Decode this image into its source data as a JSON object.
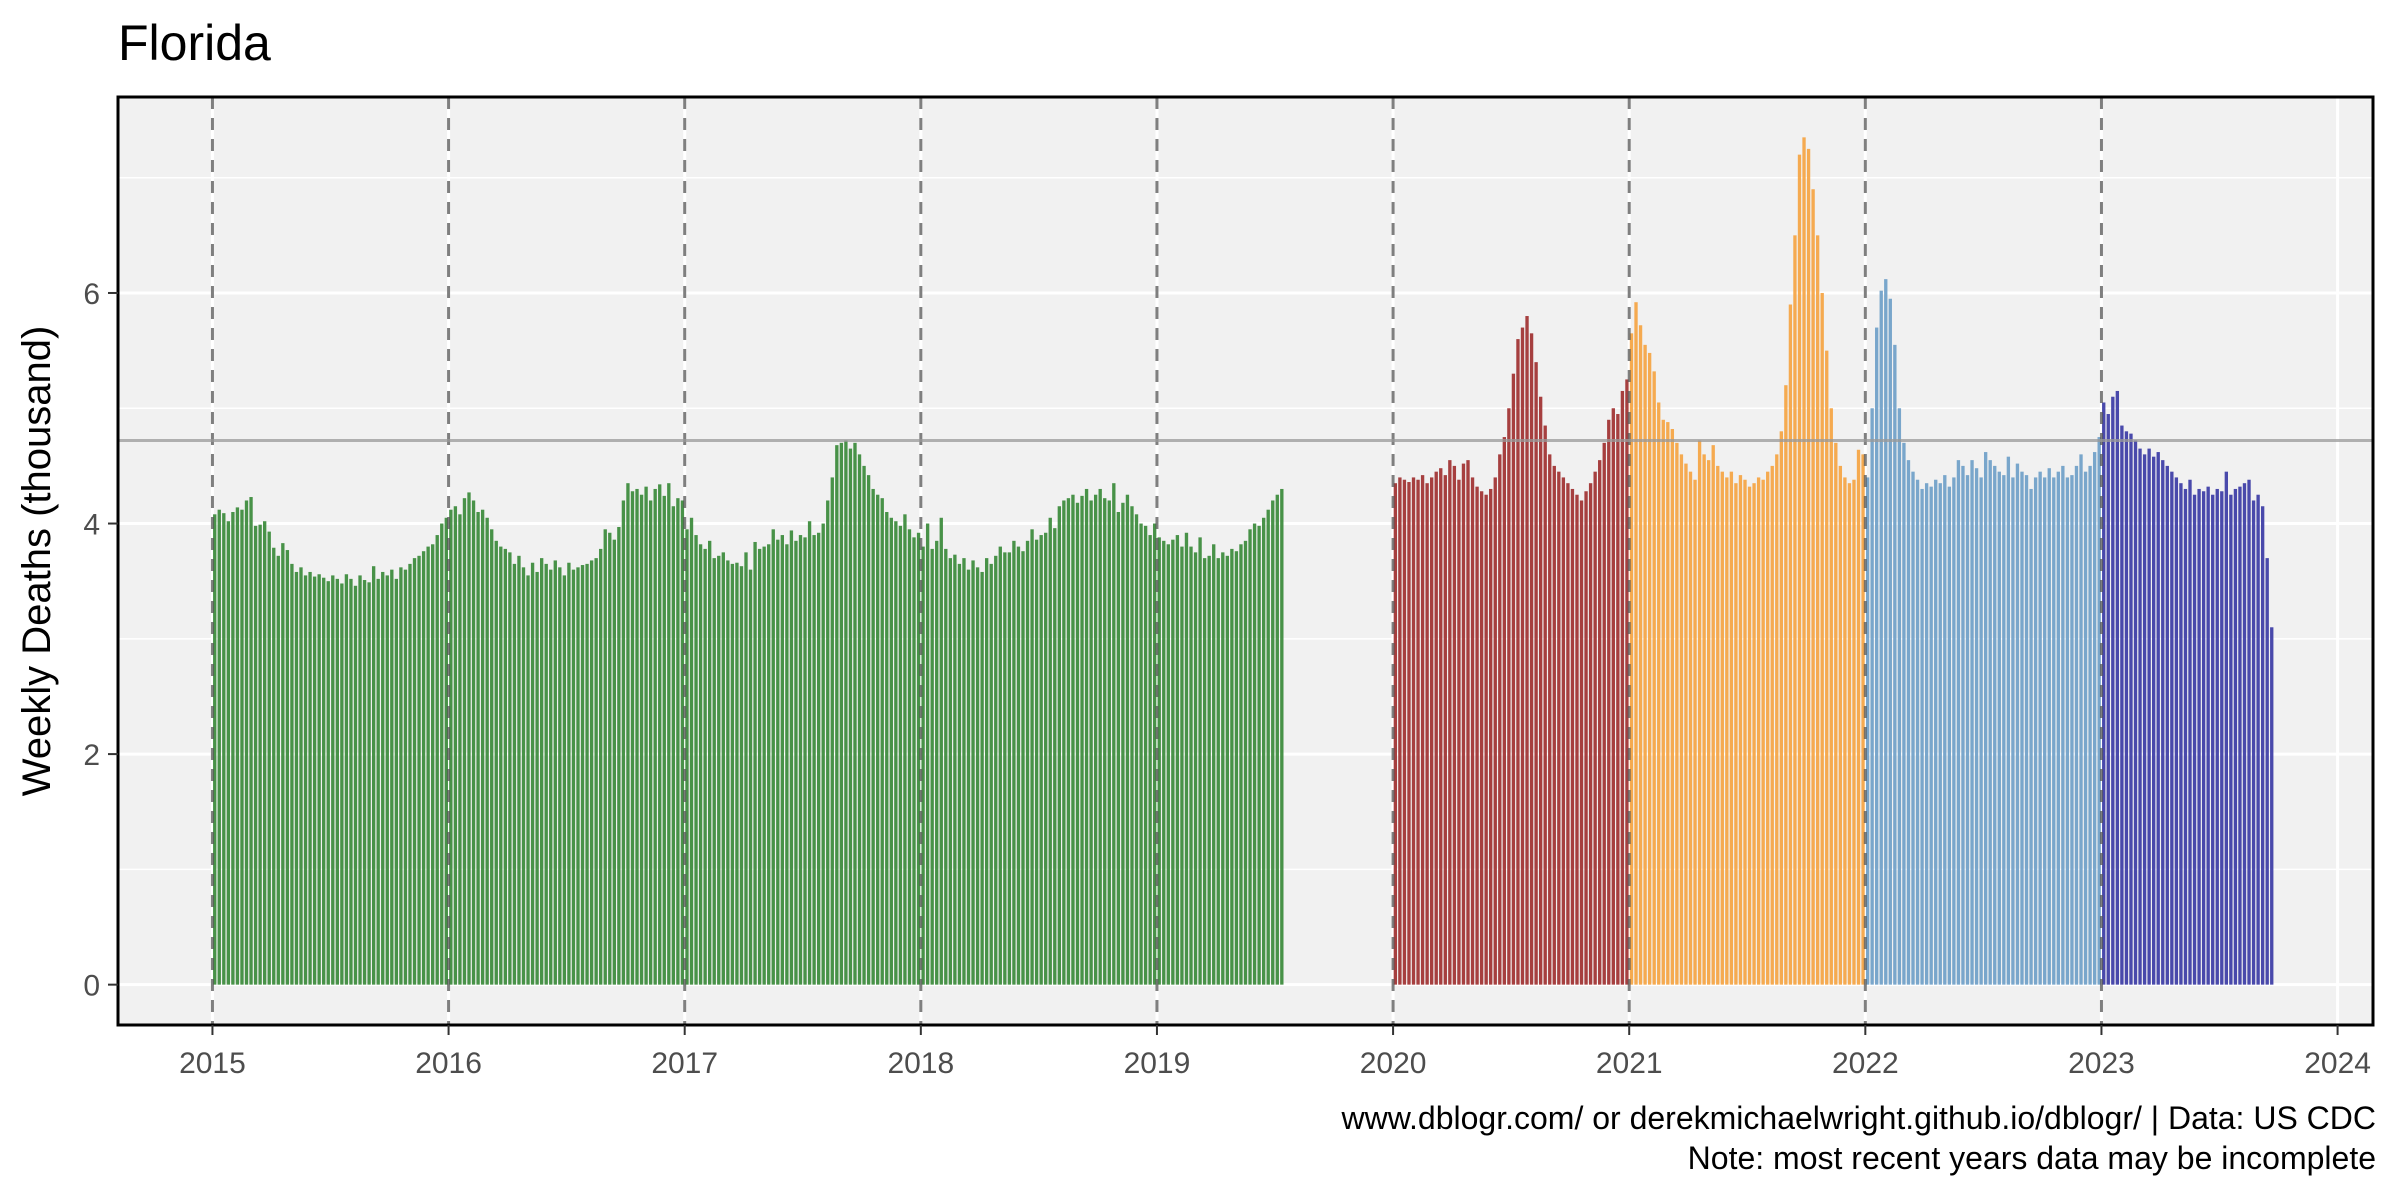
{
  "chart_data": {
    "type": "bar",
    "title": "Florida",
    "ylabel": "Weekly Deaths (thousand)",
    "xlabel": "",
    "x_ticks": [
      "2015",
      "2016",
      "2017",
      "2018",
      "2019",
      "2020",
      "2021",
      "2022",
      "2023",
      "2024"
    ],
    "y_ticks": [
      0,
      2,
      4,
      6
    ],
    "xlim": [
      2014.6,
      2024.15
    ],
    "ylim": [
      -0.35,
      7.7
    ],
    "grid": true,
    "reference_line": 4.72,
    "year_separators": [
      2015,
      2016,
      2017,
      2018,
      2019,
      2020,
      2021,
      2022,
      2023
    ],
    "series": [
      {
        "year_range": [
          2015,
          2019
        ],
        "color": "#3a8a3a",
        "values": [
          4.08,
          4.12,
          4.09,
          4.02,
          4.1,
          4.14,
          4.12,
          4.2,
          4.23,
          3.98,
          3.99,
          4.02,
          3.93,
          3.79,
          3.72,
          3.83,
          3.77,
          3.65,
          3.58,
          3.62,
          3.55,
          3.58,
          3.54,
          3.56,
          3.53,
          3.5,
          3.55,
          3.52,
          3.48,
          3.56,
          3.52,
          3.46,
          3.55,
          3.51,
          3.49,
          3.63,
          3.52,
          3.58,
          3.55,
          3.6,
          3.52,
          3.62,
          3.6,
          3.65,
          3.7,
          3.72,
          3.76,
          3.8,
          3.82,
          3.9,
          4.0,
          4.05,
          4.12,
          4.15,
          4.08,
          4.22,
          4.27,
          4.2,
          4.1,
          4.12,
          4.05,
          3.95,
          3.85,
          3.8,
          3.78,
          3.75,
          3.65,
          3.72,
          3.62,
          3.55,
          3.66,
          3.58,
          3.7,
          3.65,
          3.6,
          3.68,
          3.62,
          3.55,
          3.66,
          3.6,
          3.62,
          3.64,
          3.65,
          3.68,
          3.7,
          3.78,
          3.95,
          3.92,
          3.86,
          3.97,
          4.2,
          4.35,
          4.28,
          4.3,
          4.25,
          4.32,
          4.2,
          4.3,
          4.34,
          4.24,
          4.35,
          4.15,
          4.22,
          4.2,
          3.95,
          4.05,
          3.9,
          3.82,
          3.78,
          3.85,
          3.7,
          3.72,
          3.75,
          3.68,
          3.65,
          3.66,
          3.63,
          3.75,
          3.6,
          3.84,
          3.78,
          3.8,
          3.82,
          3.95,
          3.86,
          3.9,
          3.82,
          3.94,
          3.85,
          3.9,
          3.88,
          4.02,
          3.9,
          3.92,
          4.0,
          4.2,
          4.4,
          4.68,
          4.7,
          4.72,
          4.65,
          4.7,
          4.6,
          4.5,
          4.42,
          4.3,
          4.25,
          4.22,
          4.1,
          4.05,
          4.02,
          3.98,
          4.08,
          3.95,
          3.88,
          3.92,
          3.8,
          4.0,
          3.78,
          3.85,
          4.05,
          3.78,
          3.7,
          3.73,
          3.65,
          3.7,
          3.6,
          3.68,
          3.62,
          3.58,
          3.7,
          3.65,
          3.72,
          3.8,
          3.75,
          3.75,
          3.85,
          3.8,
          3.76,
          3.85,
          3.95,
          3.86,
          3.9,
          3.92,
          4.05,
          3.96,
          4.15,
          4.2,
          4.22,
          4.25,
          4.18,
          4.24,
          4.3,
          4.2,
          4.25,
          4.3,
          4.22,
          4.2,
          4.35,
          4.1,
          4.18,
          4.25,
          4.15,
          4.08,
          4.0,
          3.98,
          3.9,
          4.0,
          3.88,
          3.85,
          3.82,
          3.86,
          3.9,
          3.8,
          3.92,
          3.8,
          3.75,
          3.88,
          3.7,
          3.72,
          3.82,
          3.7,
          3.75,
          3.72,
          3.78,
          3.76,
          3.82,
          3.85,
          3.95,
          4.0,
          3.98,
          4.05,
          4.12,
          4.2,
          4.25,
          4.3
        ]
      },
      {
        "year_range": [
          2020,
          2020
        ],
        "color": "#a03030",
        "values": [
          4.35,
          4.4,
          4.38,
          4.36,
          4.4,
          4.38,
          4.42,
          4.35,
          4.4,
          4.45,
          4.48,
          4.42,
          4.55,
          4.5,
          4.38,
          4.52,
          4.55,
          4.4,
          4.32,
          4.28,
          4.25,
          4.3,
          4.4,
          4.6,
          4.75,
          5.0,
          5.3,
          5.6,
          5.7,
          5.8,
          5.65,
          5.4,
          5.1,
          4.85,
          4.6,
          4.5,
          4.45,
          4.4,
          4.35,
          4.3,
          4.25,
          4.2,
          4.28,
          4.35,
          4.45,
          4.55,
          4.7,
          4.9,
          5.0,
          4.95,
          5.15,
          5.25
        ]
      },
      {
        "year_range": [
          2021,
          2021
        ],
        "color": "#f5a442",
        "values": [
          5.65,
          5.92,
          5.72,
          5.55,
          5.48,
          5.32,
          5.05,
          4.9,
          4.88,
          4.82,
          4.7,
          4.6,
          4.52,
          4.45,
          4.38,
          4.72,
          4.6,
          4.55,
          4.68,
          4.5,
          4.45,
          4.4,
          4.45,
          4.35,
          4.42,
          4.38,
          4.32,
          4.35,
          4.4,
          4.38,
          4.45,
          4.5,
          4.6,
          4.8,
          5.2,
          5.9,
          6.5,
          7.2,
          7.35,
          7.25,
          6.9,
          6.5,
          6.0,
          5.5,
          5.0,
          4.7,
          4.5,
          4.4,
          4.35,
          4.38,
          4.64,
          4.6
        ]
      },
      {
        "year_range": [
          2022,
          2022
        ],
        "color": "#6f9fc8",
        "values": [
          4.4,
          5.0,
          5.7,
          6.02,
          6.12,
          5.95,
          5.55,
          5.0,
          4.7,
          4.55,
          4.45,
          4.38,
          4.3,
          4.35,
          4.32,
          4.38,
          4.35,
          4.42,
          4.32,
          4.4,
          4.55,
          4.5,
          4.42,
          4.55,
          4.48,
          4.4,
          4.62,
          4.55,
          4.5,
          4.45,
          4.42,
          4.58,
          4.4,
          4.52,
          4.45,
          4.42,
          4.3,
          4.4,
          4.45,
          4.4,
          4.48,
          4.4,
          4.45,
          4.5,
          4.4,
          4.42,
          4.5,
          4.6,
          4.45,
          4.5,
          4.62,
          4.75
        ]
      },
      {
        "year_range": [
          2023,
          2023
        ],
        "color": "#3b3ba5",
        "values": [
          5.05,
          4.95,
          5.1,
          5.15,
          4.85,
          4.8,
          4.78,
          4.72,
          4.65,
          4.6,
          4.65,
          4.58,
          4.62,
          4.55,
          4.5,
          4.45,
          4.4,
          4.35,
          4.3,
          4.38,
          4.25,
          4.3,
          4.28,
          4.32,
          4.25,
          4.3,
          4.28,
          4.45,
          4.25,
          4.3,
          4.32,
          4.35,
          4.38,
          4.2,
          4.25,
          4.15,
          3.7,
          3.1
        ]
      }
    ],
    "caption_lines": [
      "www.dblogr.com/ or derekmichaelwright.github.io/dblogr/ | Data: US CDC",
      "Note: most recent years data may be incomplete"
    ]
  }
}
